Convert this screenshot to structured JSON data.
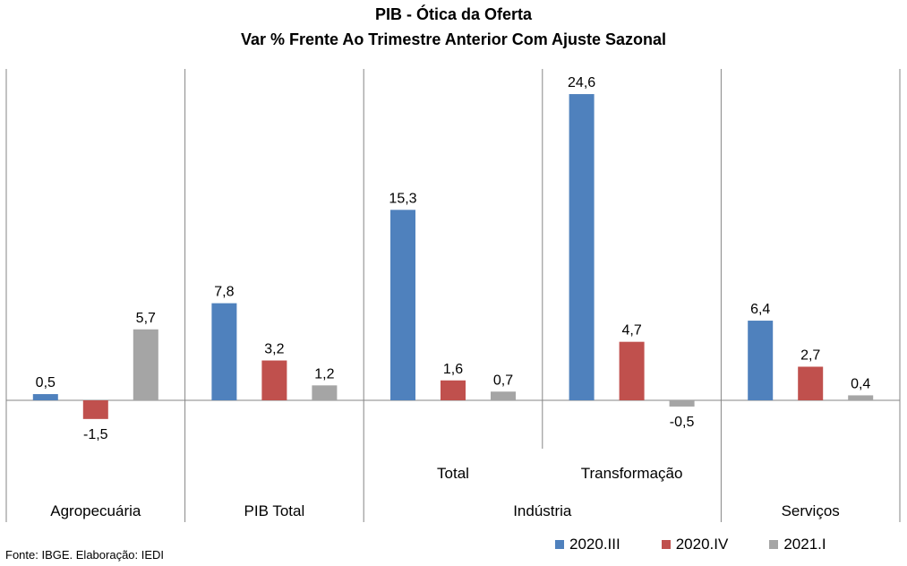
{
  "chart_data": {
    "type": "bar",
    "title": "PIB - Ótica da Oferta",
    "subtitle": "Var % Frente Ao Trimestre Anterior Com Ajuste Sazonal",
    "categories": [
      "Agropecuária",
      "PIB Total",
      "Total",
      "Transformação",
      "Serviços"
    ],
    "group_labels": [
      {
        "label": "Indústria",
        "covers": [
          "Total",
          "Transformação"
        ]
      }
    ],
    "series": [
      {
        "name": "2020.III",
        "color": "#4F81BD",
        "values": [
          0.5,
          7.8,
          15.3,
          24.6,
          6.4
        ],
        "labels": [
          "0,5",
          "7,8",
          "15,3",
          "24,6",
          "6,4"
        ]
      },
      {
        "name": "2020.IV",
        "color": "#C0504D",
        "values": [
          -1.5,
          3.2,
          1.6,
          4.7,
          2.7
        ],
        "labels": [
          "-1,5",
          "3,2",
          "1,6",
          "4,7",
          "2,7"
        ]
      },
      {
        "name": "2021.I",
        "color": "#A5A5A5",
        "values": [
          5.7,
          1.2,
          0.7,
          -0.5,
          0.4
        ],
        "labels": [
          "5,7",
          "1,2",
          "0,7",
          "-0,5",
          "0,4"
        ]
      }
    ],
    "ylim": [
      -3,
      27
    ],
    "grid": false,
    "legend": "bottom-right"
  },
  "footer": {
    "source": "Fonte: IBGE. Elaboração: IEDI"
  }
}
